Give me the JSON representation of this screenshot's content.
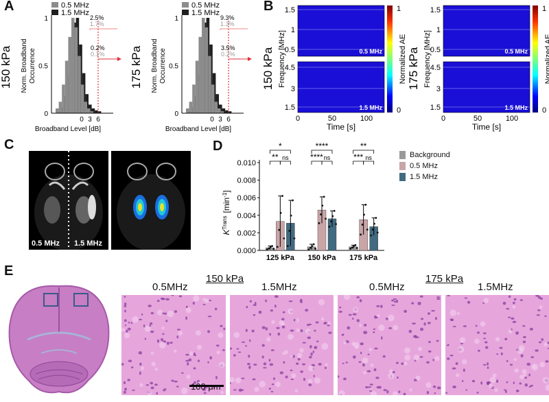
{
  "panels": {
    "a": "A",
    "b": "B",
    "c": "C",
    "d": "D",
    "e": "E"
  },
  "panelA": {
    "histograms": [
      {
        "row_label": "150 kPa",
        "ylabel_line1": "Norm. Broadband",
        "ylabel_line2": "Occurrence",
        "xlabel": "Broadband Level [dB]",
        "legend": [
          "0.5 MHz",
          "1.5 MHz"
        ],
        "yticks": [
          "0",
          "0.5",
          "1"
        ],
        "xticks": [
          "0",
          "3",
          "6"
        ],
        "ann_upper_dark": "2.5%",
        "ann_upper_gray": "1.7%",
        "ann_lower_dark": "0.2%",
        "ann_lower_gray": "0.1%"
      },
      {
        "row_label": "175 kPa",
        "ylabel_line1": "Norm. Broadband",
        "ylabel_line2": "Occurrence",
        "xlabel": "Broadband Level [dB]",
        "legend": [
          "0.5 MHz",
          "1.5 MHz"
        ],
        "yticks": [
          "0",
          "0.5",
          "1"
        ],
        "xticks": [
          "0",
          "3",
          "6"
        ],
        "ann_upper_dark": "9.3%",
        "ann_upper_gray": "1.3%",
        "ann_lower_dark": "3.5%",
        "ann_lower_gray": "0.2%"
      }
    ],
    "colors": {
      "gray": "#8c8c8c",
      "dark": "#1f1f1f",
      "red": "#e0303a"
    }
  },
  "panelB": {
    "maps": [
      {
        "row_label": "150 kPa",
        "ylabel": "Frequency [MHz]",
        "xlabel": "Time [s]",
        "top_yticks": [
          "0.5",
          "1",
          "1.5"
        ],
        "bottom_yticks": [
          "1.5",
          "3",
          "4.5"
        ],
        "xticks": [
          "0",
          "50",
          "100"
        ],
        "top_tag": "0.5 MHz",
        "bottom_tag": "1.5 MHz",
        "cbar_label": "Normalized AE",
        "cbar_ticks": [
          "0",
          "1"
        ]
      },
      {
        "row_label": "175 kPa",
        "ylabel": "Frequency [MHz]",
        "xlabel": "Time [s]",
        "top_yticks": [
          "0.5",
          "1",
          "1.5"
        ],
        "bottom_yticks": [
          "1.5",
          "3",
          "4.5"
        ],
        "xticks": [
          "0",
          "50",
          "100"
        ],
        "top_tag": "0.5 MHz",
        "bottom_tag": "1.5 MHz",
        "cbar_label": "Normalized AE",
        "cbar_ticks": [
          "0",
          "1"
        ]
      }
    ],
    "colors": {
      "map": "#1a0fd6",
      "line": "#b8c8ff"
    }
  },
  "panelC": {
    "left_label": "0.5 MHz",
    "right_label": "1.5 MHz"
  },
  "chart_data": {
    "type": "bar",
    "categories": [
      "125 kPa",
      "150 kPa",
      "175 kPa"
    ],
    "ylabel_main": "K",
    "ylabel_sup": "Trans",
    "ylabel_unit": "[min",
    "ylabel_unit_sup": "-1",
    "ylabel_close": "]",
    "ylim": [
      0,
      0.01
    ],
    "yticks": [
      "0.000",
      "0.002",
      "0.004",
      "0.006",
      "0.008",
      "0.010"
    ],
    "legend_position": "right",
    "series": [
      {
        "name": "Background",
        "color": "#9a9a9a",
        "values": [
          0.0003,
          0.0004,
          0.0004
        ],
        "err": [
          0.0002,
          0.0003,
          0.0002
        ]
      },
      {
        "name": "0.5 MHz",
        "color": "#c9a5a8",
        "values": [
          0.0033,
          0.0046,
          0.0035
        ],
        "err": [
          0.0029,
          0.0015,
          0.0017
        ]
      },
      {
        "name": "1.5 MHz",
        "color": "#426a80",
        "values": [
          0.0031,
          0.0036,
          0.0027
        ],
        "err": [
          0.0026,
          0.0009,
          0.001
        ]
      }
    ],
    "significance": [
      {
        "group": 0,
        "from": 0,
        "to": 2,
        "label": "*"
      },
      {
        "group": 0,
        "from": 0,
        "to": 1,
        "label": "**"
      },
      {
        "group": 0,
        "from": 1,
        "to": 2,
        "label": "ns"
      },
      {
        "group": 1,
        "from": 0,
        "to": 2,
        "label": "****"
      },
      {
        "group": 1,
        "from": 0,
        "to": 1,
        "label": "****"
      },
      {
        "group": 1,
        "from": 1,
        "to": 2,
        "label": "ns"
      },
      {
        "group": 2,
        "from": 0,
        "to": 2,
        "label": "**"
      },
      {
        "group": 2,
        "from": 0,
        "to": 1,
        "label": "***"
      },
      {
        "group": 2,
        "from": 1,
        "to": 2,
        "label": "ns"
      }
    ]
  },
  "panelE": {
    "group1": "150 kPa",
    "group2": "175 kPa",
    "labels": [
      "0.5MHz",
      "1.5MHz",
      "0.5MHz",
      "1.5MHz"
    ],
    "scalebar": "100 μm",
    "colors": {
      "tissue": "#d98bd0",
      "bg": "#e6a6dc",
      "nuclei": "#8a3fa0"
    }
  }
}
